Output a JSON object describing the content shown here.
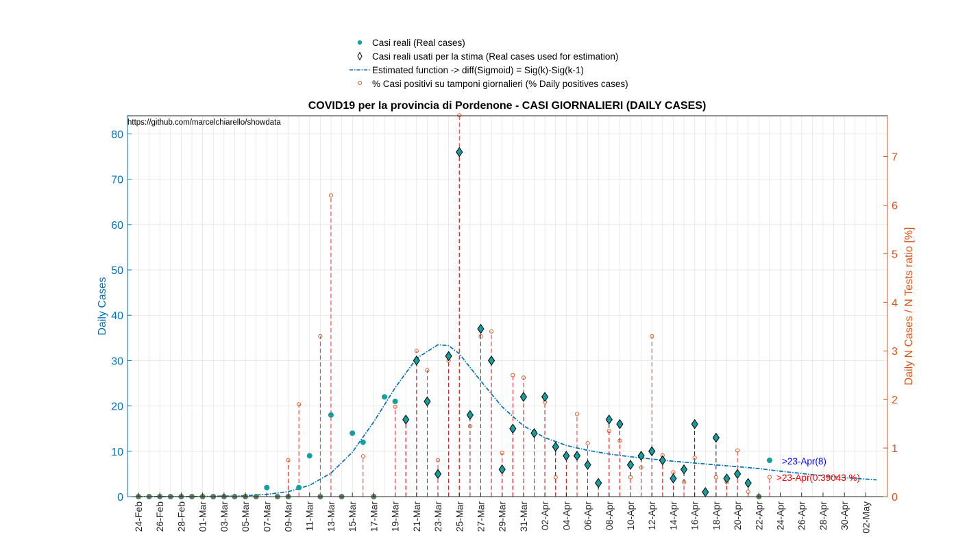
{
  "colors": {
    "left_axis": "#0072BD",
    "right_axis": "#D95319",
    "real_fill": "#169E9E",
    "dashed_red": "#E41A1C",
    "dashed_black": "#000000",
    "fit_line": "#0072BD",
    "pct_marker": "#D95319",
    "grid": "#DCDCDC",
    "annot_blue": "#0000FF",
    "annot_red": "#FF0000",
    "zero_marker": "#5A7F5A"
  },
  "chart_data": {
    "type": "scatter",
    "title": "COVID19 per la provincia di Pordenone - CASI GIORNALIERI (DAILY CASES)",
    "source_note": "https://github.com/marcelchiarello/showdata",
    "ylabel_left": "Daily Cases",
    "ylabel_right": "Daily N Cases / N Tests ratio [%]",
    "ylim_left": [
      0,
      84
    ],
    "ylim_right": [
      0,
      7.84
    ],
    "yticks_left": [
      0,
      10,
      20,
      30,
      40,
      50,
      60,
      70,
      80
    ],
    "yticks_right": [
      0,
      1,
      2,
      3,
      4,
      5,
      6,
      7
    ],
    "grid": true,
    "legend_position": "top-center",
    "legend": [
      {
        "label": "Casi reali (Real cases)",
        "marker": "dot"
      },
      {
        "label": "Casi reali usati per la stima (Real cases used for estimation)",
        "marker": "diamond"
      },
      {
        "label": "Estimated function -> diff(Sigmoid) = Sig(k)-Sig(k-1)",
        "marker": "dashdot"
      },
      {
        "label": "% Casi positivi su tamponi giornalieri (% Daily positives cases)",
        "marker": "circle"
      }
    ],
    "x_labels": [
      "24-Feb",
      "26-Feb",
      "28-Feb",
      "01-Mar",
      "03-Mar",
      "05-Mar",
      "07-Mar",
      "09-Mar",
      "11-Mar",
      "13-Mar",
      "15-Mar",
      "17-Mar",
      "19-Mar",
      "21-Mar",
      "23-Mar",
      "25-Mar",
      "27-Mar",
      "29-Mar",
      "31-Mar",
      "02-Apr",
      "04-Apr",
      "06-Apr",
      "08-Apr",
      "10-Apr",
      "12-Apr",
      "14-Apr",
      "16-Apr",
      "18-Apr",
      "20-Apr",
      "22-Apr",
      "24-Apr",
      "26-Apr",
      "28-Apr",
      "30-Apr",
      "02-May"
    ],
    "x_start": "24-Feb",
    "x_end": "03-May",
    "real_cases_dates": [
      "24-Feb",
      "25-Feb",
      "26-Feb",
      "27-Feb",
      "28-Feb",
      "29-Feb",
      "01-Mar",
      "02-Mar",
      "03-Mar",
      "04-Mar",
      "05-Mar",
      "06-Mar",
      "07-Mar",
      "08-Mar",
      "09-Mar",
      "10-Mar",
      "11-Mar",
      "12-Mar",
      "13-Mar",
      "14-Mar",
      "15-Mar",
      "16-Mar",
      "17-Mar",
      "18-Mar",
      "19-Mar",
      "20-Mar",
      "21-Mar",
      "22-Mar",
      "23-Mar",
      "24-Mar",
      "25-Mar",
      "26-Mar",
      "27-Mar",
      "28-Mar",
      "29-Mar",
      "30-Mar",
      "31-Mar",
      "01-Apr",
      "02-Apr",
      "03-Apr",
      "04-Apr",
      "05-Apr",
      "06-Apr",
      "07-Apr",
      "08-Apr",
      "09-Apr",
      "10-Apr",
      "11-Apr",
      "12-Apr",
      "13-Apr",
      "14-Apr",
      "15-Apr",
      "16-Apr",
      "17-Apr",
      "18-Apr",
      "19-Apr",
      "20-Apr",
      "21-Apr",
      "22-Apr",
      "23-Apr"
    ],
    "real_cases": [
      0,
      0,
      0,
      0,
      0,
      0,
      0,
      0,
      0,
      0,
      0,
      0,
      2,
      0,
      0,
      2,
      9,
      0,
      18,
      0,
      14,
      12,
      0,
      22,
      21,
      17,
      30,
      21,
      5,
      31,
      76,
      18,
      37,
      30,
      6,
      15,
      22,
      14,
      22,
      11,
      9,
      9,
      7,
      3,
      17,
      16,
      7,
      9,
      10,
      8,
      4,
      6,
      16,
      1,
      13,
      4,
      5,
      3,
      0,
      8
    ],
    "estimation_dates": [
      "20-Mar",
      "21-Mar",
      "22-Mar",
      "23-Mar",
      "24-Mar",
      "25-Mar",
      "26-Mar",
      "27-Mar",
      "28-Mar",
      "29-Mar",
      "30-Mar",
      "31-Mar",
      "01-Apr",
      "02-Apr",
      "03-Apr",
      "04-Apr",
      "05-Apr",
      "06-Apr",
      "07-Apr",
      "08-Apr",
      "09-Apr",
      "10-Apr",
      "11-Apr",
      "12-Apr",
      "13-Apr",
      "14-Apr",
      "15-Apr",
      "16-Apr",
      "17-Apr",
      "18-Apr",
      "19-Apr",
      "20-Apr",
      "21-Apr"
    ],
    "estimation_cases": [
      17,
      30,
      21,
      5,
      31,
      76,
      18,
      37,
      30,
      6,
      15,
      22,
      14,
      22,
      11,
      9,
      9,
      7,
      3,
      17,
      16,
      7,
      9,
      10,
      8,
      4,
      6,
      16,
      1,
      13,
      4,
      5,
      3
    ],
    "fit_dates": [
      "24-Feb",
      "29-Feb",
      "05-Mar",
      "07-Mar",
      "09-Mar",
      "11-Mar",
      "13-Mar",
      "15-Mar",
      "17-Mar",
      "19-Mar",
      "21-Mar",
      "23-Mar",
      "24-Mar",
      "25-Mar",
      "27-Mar",
      "29-Mar",
      "31-Mar",
      "02-Apr",
      "04-Apr",
      "06-Apr",
      "08-Apr",
      "10-Apr",
      "12-Apr",
      "14-Apr",
      "16-Apr",
      "18-Apr",
      "20-Apr",
      "22-Apr",
      "24-Apr",
      "26-Apr",
      "28-Apr",
      "30-Apr",
      "03-May"
    ],
    "fit_values": [
      0,
      0,
      0.2,
      0.5,
      1.1,
      2.5,
      5.2,
      9.8,
      16.5,
      24.0,
      30.5,
      33.5,
      33.3,
      31.5,
      25.5,
      19.8,
      15.6,
      13.0,
      11.3,
      10.2,
      9.4,
      8.8,
      8.3,
      7.8,
      7.4,
      7.0,
      6.6,
      6.2,
      5.6,
      5.1,
      4.6,
      4.2,
      3.7
    ],
    "pct_dates": [
      "09-Mar",
      "10-Mar",
      "12-Mar",
      "13-Mar",
      "16-Mar",
      "19-Mar",
      "20-Mar",
      "21-Mar",
      "22-Mar",
      "23-Mar",
      "24-Mar",
      "25-Mar",
      "26-Mar",
      "27-Mar",
      "28-Mar",
      "29-Mar",
      "30-Mar",
      "31-Mar",
      "01-Apr",
      "02-Apr",
      "03-Apr",
      "04-Apr",
      "05-Apr",
      "06-Apr",
      "07-Apr",
      "08-Apr",
      "09-Apr",
      "10-Apr",
      "11-Apr",
      "12-Apr",
      "13-Apr",
      "14-Apr",
      "15-Apr",
      "16-Apr",
      "17-Apr",
      "18-Apr",
      "19-Apr",
      "20-Apr",
      "21-Apr",
      "23-Apr"
    ],
    "pct_values": [
      0.75,
      1.9,
      3.3,
      6.2,
      0.83,
      1.85,
      1.6,
      3.0,
      2.6,
      0.75,
      2.8,
      7.85,
      1.45,
      3.3,
      3.4,
      0.9,
      2.5,
      2.45,
      1.3,
      1.95,
      0.4,
      0.8,
      1.7,
      1.1,
      0.3,
      1.35,
      1.15,
      0.4,
      0.6,
      3.3,
      0.85,
      0.5,
      0.3,
      0.8,
      0.1,
      0.4,
      0.3,
      0.95,
      0.1,
      0.4
    ],
    "annotation_cases": ">23-Apr(8)",
    "annotation_pct": ">23-Apr(0.39043 %)"
  }
}
